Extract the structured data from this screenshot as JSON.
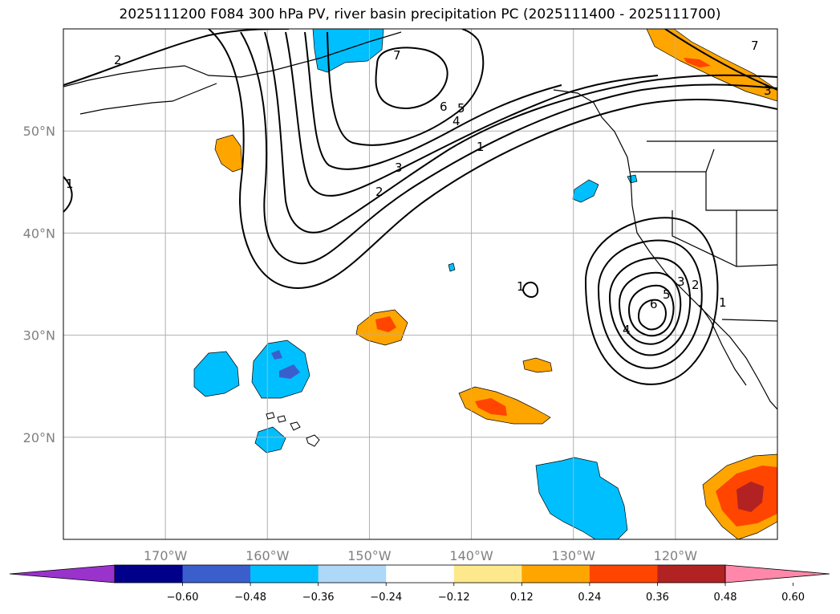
{
  "title": "2025111200 F084 300 hPa PV, river basin precipitation PC (2025111400 - 2025111700)",
  "map": {
    "lon_range": [
      -180,
      -110
    ],
    "lat_range": [
      10,
      60
    ],
    "lat_ticks": [
      {
        "lat": 50,
        "label": "50°N"
      },
      {
        "lat": 40,
        "label": "40°N"
      },
      {
        "lat": 30,
        "label": "30°N"
      },
      {
        "lat": 20,
        "label": "20°N"
      }
    ],
    "lon_ticks": [
      {
        "lon": -170,
        "label": "170°W"
      },
      {
        "lon": -160,
        "label": "160°W"
      },
      {
        "lon": -150,
        "label": "150°W"
      },
      {
        "lon": -140,
        "label": "140°W"
      },
      {
        "lon": -130,
        "label": "130°W"
      },
      {
        "lon": -120,
        "label": "120°W"
      }
    ],
    "grid": true
  },
  "contour_labels": [
    "2",
    "7",
    "6",
    "5",
    "4",
    "1",
    "3",
    "2",
    "1",
    "1",
    "6",
    "5",
    "3",
    "2",
    "4",
    "1",
    "3",
    "7"
  ],
  "colorbar": {
    "colors": [
      "#9933cc",
      "#00008b",
      "#3a5fcd",
      "#00bfff",
      "#add8f7",
      "#ffffff",
      "#fde98b",
      "#ffa500",
      "#ff4500",
      "#b22222",
      "#ff88aa"
    ],
    "ticks": [
      "−0.60",
      "−0.48",
      "−0.36",
      "−0.24",
      "−0.12",
      "0.12",
      "0.24",
      "0.36",
      "0.48",
      "0.60"
    ]
  },
  "palette": {
    "neg_strong": "#3a5fcd",
    "neg": "#00bfff",
    "pos": "#ffa500",
    "pos_strong": "#ff4500",
    "pos_max": "#b22222"
  }
}
